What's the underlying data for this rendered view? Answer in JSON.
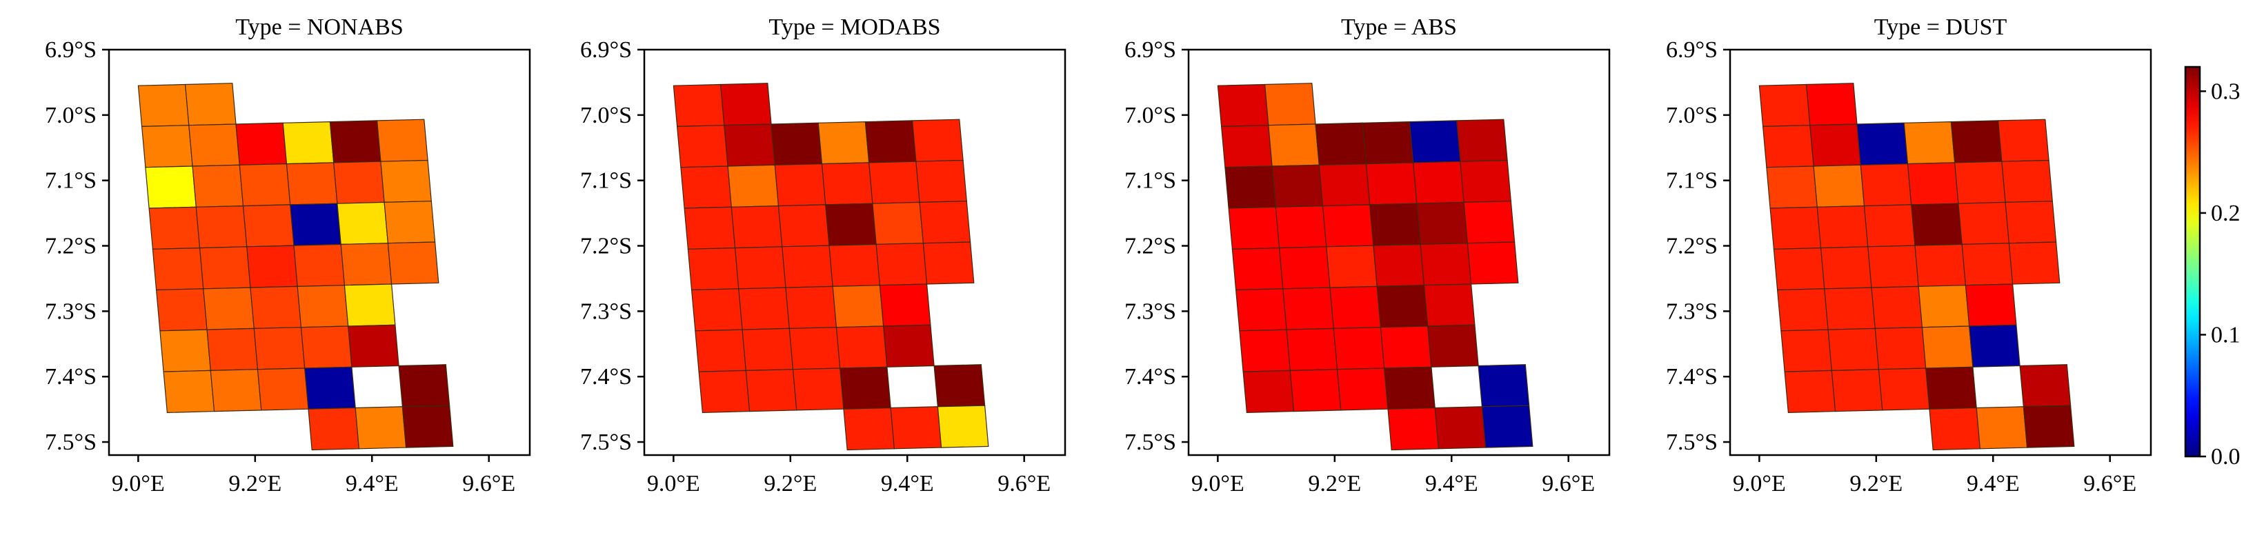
{
  "chart_data": {
    "type": "heatmap",
    "cell_rows": 9,
    "cell_cols": 6,
    "note": "Cell values estimated from colorbar; grid rows top-to-bottom, cols left-to-right; null = empty cell",
    "xticks": [
      "9.0°E",
      "9.2°E",
      "9.4°E",
      "9.6°E"
    ],
    "xtick_values": [
      9.0,
      9.2,
      9.4,
      9.6
    ],
    "yticks": [
      "6.9°S",
      "7.0°S",
      "7.1°S",
      "7.2°S",
      "7.3°S",
      "7.4°S",
      "7.5°S"
    ],
    "ytick_values": [
      6.9,
      7.0,
      7.1,
      7.2,
      7.3,
      7.4,
      7.5
    ],
    "xlim": [
      8.95,
      9.67
    ],
    "ylim": [
      6.9,
      7.52
    ],
    "cell_lon_step": 0.0805,
    "cell_lat_step": 0.0625,
    "grid_origin_lon": 9.0,
    "grid_origin_lat": 6.955,
    "colorbar": {
      "colormap": "jet",
      "min": 0.0,
      "max": 0.32,
      "ticks": [
        0.0,
        0.1,
        0.2,
        0.3
      ],
      "tick_labels": [
        "0.0",
        "0.1",
        "0.2",
        "0.3"
      ]
    },
    "panels": [
      {
        "title": "Type = NONABS",
        "values": [
          [
            0.24,
            0.24,
            null,
            null,
            null,
            null
          ],
          [
            0.24,
            0.245,
            0.28,
            0.21,
            0.33,
            0.245
          ],
          [
            0.2,
            0.25,
            0.255,
            0.255,
            0.26,
            0.24
          ],
          [
            0.26,
            0.26,
            0.26,
            0.01,
            0.21,
            0.24
          ],
          [
            0.26,
            0.26,
            0.27,
            0.26,
            0.25,
            0.25
          ],
          [
            0.26,
            0.25,
            0.26,
            0.25,
            0.21,
            null
          ],
          [
            0.24,
            0.26,
            0.26,
            0.26,
            0.3,
            null
          ],
          [
            0.24,
            0.245,
            0.255,
            0.01,
            null,
            0.33
          ],
          [
            null,
            null,
            null,
            0.265,
            0.24,
            0.33
          ]
        ]
      },
      {
        "title": "Type = MODABS",
        "values": [
          [
            0.27,
            0.29,
            null,
            null,
            null,
            null
          ],
          [
            0.27,
            0.3,
            0.34,
            0.24,
            0.34,
            0.27
          ],
          [
            0.27,
            0.245,
            0.27,
            0.27,
            0.27,
            0.27
          ],
          [
            0.27,
            0.27,
            0.27,
            0.33,
            0.26,
            0.27
          ],
          [
            0.27,
            0.27,
            0.27,
            0.27,
            0.27,
            0.27
          ],
          [
            0.27,
            0.27,
            0.27,
            0.25,
            0.28,
            null
          ],
          [
            0.27,
            0.27,
            0.27,
            0.27,
            0.3,
            null
          ],
          [
            0.27,
            0.27,
            0.27,
            0.33,
            null,
            0.34
          ],
          [
            null,
            null,
            null,
            0.27,
            0.27,
            0.21
          ]
        ]
      },
      {
        "title": "Type = ABS",
        "values": [
          [
            0.29,
            0.25,
            null,
            null,
            null,
            null
          ],
          [
            0.29,
            0.245,
            0.33,
            0.33,
            0.01,
            0.3
          ],
          [
            0.33,
            0.31,
            0.29,
            0.285,
            0.285,
            0.29
          ],
          [
            0.28,
            0.28,
            0.28,
            0.33,
            0.31,
            0.28
          ],
          [
            0.28,
            0.28,
            0.27,
            0.29,
            0.29,
            0.28
          ],
          [
            0.28,
            0.28,
            0.28,
            0.33,
            0.29,
            null
          ],
          [
            0.28,
            0.28,
            0.28,
            0.28,
            0.31,
            null
          ],
          [
            0.29,
            0.28,
            0.28,
            0.33,
            null,
            0.01
          ],
          [
            null,
            null,
            null,
            0.28,
            0.3,
            0.01
          ]
        ]
      },
      {
        "title": "Type = DUST",
        "values": [
          [
            0.27,
            0.28,
            null,
            null,
            null,
            null
          ],
          [
            0.27,
            0.29,
            0.01,
            0.24,
            0.33,
            0.27
          ],
          [
            0.26,
            0.245,
            0.27,
            0.275,
            0.27,
            0.27
          ],
          [
            0.27,
            0.27,
            0.27,
            0.34,
            0.27,
            0.27
          ],
          [
            0.27,
            0.27,
            0.27,
            0.27,
            0.27,
            0.27
          ],
          [
            0.27,
            0.27,
            0.27,
            0.24,
            0.28,
            null
          ],
          [
            0.27,
            0.27,
            0.27,
            0.245,
            0.01,
            null
          ],
          [
            0.27,
            0.27,
            0.27,
            0.34,
            null,
            0.3
          ],
          [
            null,
            null,
            null,
            0.27,
            0.245,
            0.34
          ]
        ]
      }
    ]
  }
}
